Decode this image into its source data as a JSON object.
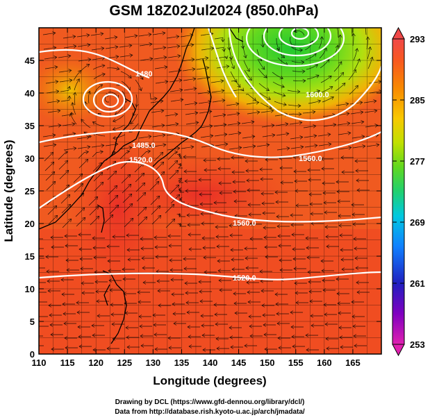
{
  "title": "GSM 18Z02Jul2024 (850.0hPa)",
  "xlabel": "Longitude (degrees)",
  "ylabel": "Latitude  (degrees)",
  "x_ticks": [
    "110",
    "115",
    "120",
    "125",
    "130",
    "135",
    "140",
    "145",
    "150",
    "155",
    "160",
    "165"
  ],
  "y_ticks": [
    "0",
    "5",
    "10",
    "15",
    "20",
    "25",
    "30",
    "35",
    "40",
    "45"
  ],
  "colorbar_ticks": [
    "253",
    "261",
    "269",
    "277",
    "285",
    "293"
  ],
  "colorbar_colors": [
    "#e020b0",
    "#8000c0",
    "#2020c0",
    "#1080ff",
    "#00c8e0",
    "#00d0a0",
    "#30d040",
    "#a0e000",
    "#f0d000",
    "#f8a000",
    "#f86020",
    "#f04040"
  ],
  "contour_labels": [
    "1485.0",
    "1520.0",
    "1560.0",
    "1560.0",
    "1520.0",
    "1600.0",
    "1480"
  ],
  "credit_line1": "Drawing by DCL (https://www.gfd-dennou.org/library/dcl/)",
  "credit_line2": "Data from http://database.rish.kyoto-u.ac.jp/arch/jmadata/",
  "chart_data": {
    "type": "heatmap",
    "variable": "temperature (K) with geopotential height contours (m) and wind streamlines",
    "xlim": [
      110,
      170
    ],
    "ylim": [
      0,
      50
    ],
    "color_range": [
      253,
      293
    ],
    "height_contours": [
      1485.0,
      1520.0,
      1560.0,
      1600.0
    ]
  }
}
